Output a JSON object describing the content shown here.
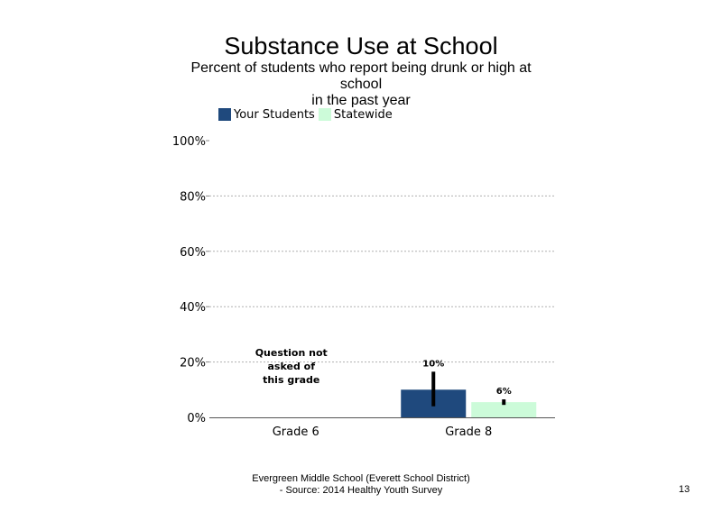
{
  "chart_data": {
    "type": "bar",
    "title": "Substance Use at School",
    "subtitle": "Percent of students  who report being drunk or high at school\nin the past year",
    "categories": [
      "Grade 6",
      "Grade 8"
    ],
    "series": [
      {
        "name": "Your Students",
        "color": "#1f497d",
        "values": [
          null,
          10
        ],
        "labels": [
          "",
          "10%"
        ],
        "error": [
          null,
          [
            4,
            16.5
          ]
        ]
      },
      {
        "name": "Statewide",
        "color": "#ccfbd9",
        "values": [
          null,
          5.5
        ],
        "labels": [
          "",
          "6%"
        ],
        "error": [
          null,
          [
            4.5,
            6.5
          ]
        ]
      }
    ],
    "yticks": [
      "0%",
      "20%",
      "40%",
      "60%",
      "80%",
      "100%"
    ],
    "ylim": [
      0,
      100
    ],
    "grid": true,
    "legend_position": "top",
    "annotation": {
      "category": "Grade 6",
      "text": [
        "Question not",
        "asked of",
        "this grade"
      ]
    }
  },
  "footer": {
    "line1": "Evergreen Middle School (Everett School District)",
    "line2": "- Source: 2014 Healthy  Youth Survey",
    "page_number": "13"
  }
}
